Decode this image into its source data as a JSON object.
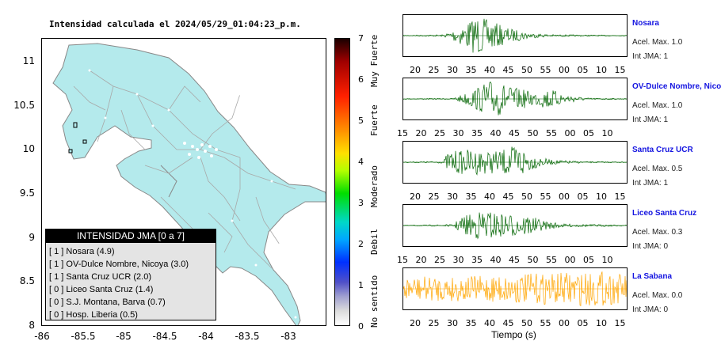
{
  "map": {
    "title": "Intensidad calculada el 2024/05/29_01:04:23_p.m.",
    "y_ticks": [
      "11",
      "10.5",
      "10",
      "9.5",
      "9",
      "8.5",
      "8"
    ],
    "x_ticks": [
      "-86",
      "-85.5",
      "-85",
      "-84.5",
      "-84",
      "-83.5",
      "-83"
    ],
    "land_color": "#b4eaec"
  },
  "legend": {
    "title": "INTENSIDAD JMA [0 a 7]",
    "items": [
      {
        "level": "[ 1 ]",
        "station": "Nosara (4.9)"
      },
      {
        "level": "[ 1 ]",
        "station": "OV-Dulce Nombre, Nicoya (3.0)"
      },
      {
        "level": "[ 1 ]",
        "station": "Santa Cruz UCR (2.0)"
      },
      {
        "level": "[ 0 ]",
        "station": "Liceo Santa Cruz (1.4)"
      },
      {
        "level": "[ 0 ]",
        "station": "S.J. Montana, Barva (0.7)"
      },
      {
        "level": "[ 0 ]",
        "station": "Hosp. Liberia (0.5)"
      }
    ]
  },
  "colorbar": {
    "ticks": [
      "7",
      "6",
      "5",
      "4",
      "3",
      "2",
      "1",
      "0"
    ],
    "labels": [
      "Muy Fuerte",
      "Fuerte",
      "Moderado",
      "Debil",
      "No sentido"
    ]
  },
  "traces": [
    {
      "name": "Nosara",
      "acel": "Acel. Max. 1.0",
      "int": "Int JMA: 1",
      "color": "#006400",
      "axis": [
        "20",
        "25",
        "30",
        "35",
        "40",
        "45",
        "50",
        "55",
        "00",
        "05",
        "10",
        "15"
      ]
    },
    {
      "name": "OV-Dulce Nombre, Nico",
      "acel": "Acel. Max. 1.0",
      "int": "Int JMA: 1",
      "color": "#006400",
      "axis": [
        "15",
        "20",
        "25",
        "30",
        "35",
        "40",
        "45",
        "50",
        "55",
        "00",
        "05",
        "10"
      ]
    },
    {
      "name": "Santa Cruz UCR",
      "acel": "Acel. Max. 0.5",
      "int": "Int JMA: 1",
      "color": "#006400",
      "axis": [
        "20",
        "25",
        "30",
        "35",
        "40",
        "45",
        "50",
        "55",
        "00",
        "05",
        "10",
        "15"
      ]
    },
    {
      "name": "Liceo Santa Cruz",
      "acel": "Acel. Max. 0.3",
      "int": "Int JMA: 0",
      "color": "#006400",
      "axis": [
        "15",
        "20",
        "25",
        "30",
        "35",
        "40",
        "45",
        "50",
        "55",
        "00",
        "05",
        "10"
      ]
    },
    {
      "name": "La Sabana",
      "acel": "Acel. Max. 0.0",
      "int": "Int JMA: 0",
      "color": "#ffa500",
      "axis": [
        "20",
        "25",
        "30",
        "35",
        "40",
        "45",
        "50",
        "55",
        "00",
        "05",
        "10",
        "15"
      ]
    }
  ],
  "time_label": "Tiempo (s)"
}
